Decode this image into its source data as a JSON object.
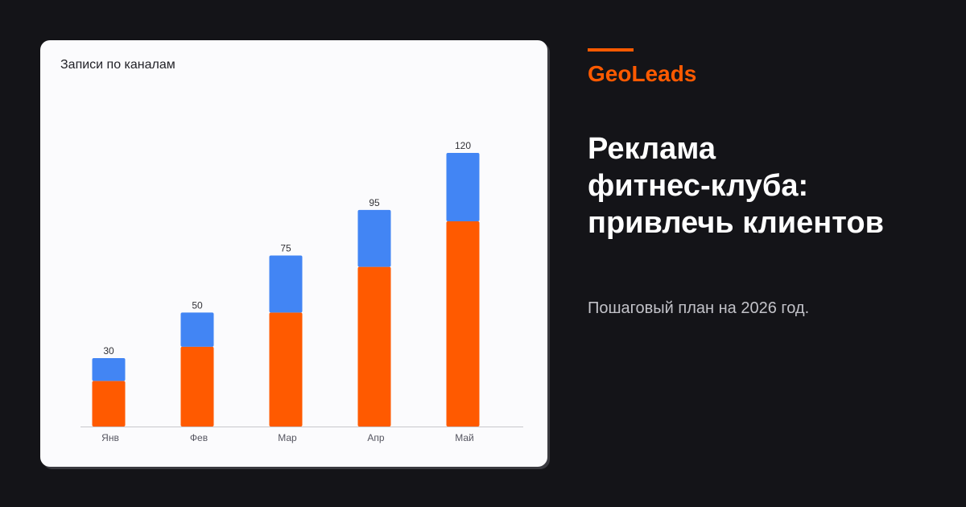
{
  "colors": {
    "background": "#141418",
    "card": "#fbfbfd",
    "accent": "#ff5a00",
    "series_bottom": "#ff5a00",
    "series_top": "#4285f4",
    "headline": "#ffffff",
    "subtitle": "#c2c2c8"
  },
  "brand": "GeoLeads",
  "headline": {
    "lines": [
      "Реклама",
      "фитнес-клуба:",
      "привлечь клиентов"
    ]
  },
  "subtitle": "Пошаговый план на 2026 год.",
  "chart_data": {
    "type": "bar",
    "stacked": true,
    "title": "Записи по каналам",
    "xlabel": "",
    "ylabel": "",
    "categories": [
      "Янв",
      "Фев",
      "Мар",
      "Апр",
      "Май"
    ],
    "series": [
      {
        "values": [
          20,
          35,
          50,
          70,
          90
        ],
        "color": "#ff5a00"
      },
      {
        "values": [
          10,
          15,
          25,
          25,
          30
        ],
        "color": "#4285f4"
      }
    ],
    "totals": [
      30,
      50,
      75,
      95,
      120
    ],
    "ylim": [
      0,
      120
    ],
    "grid": false,
    "legend": "none"
  }
}
